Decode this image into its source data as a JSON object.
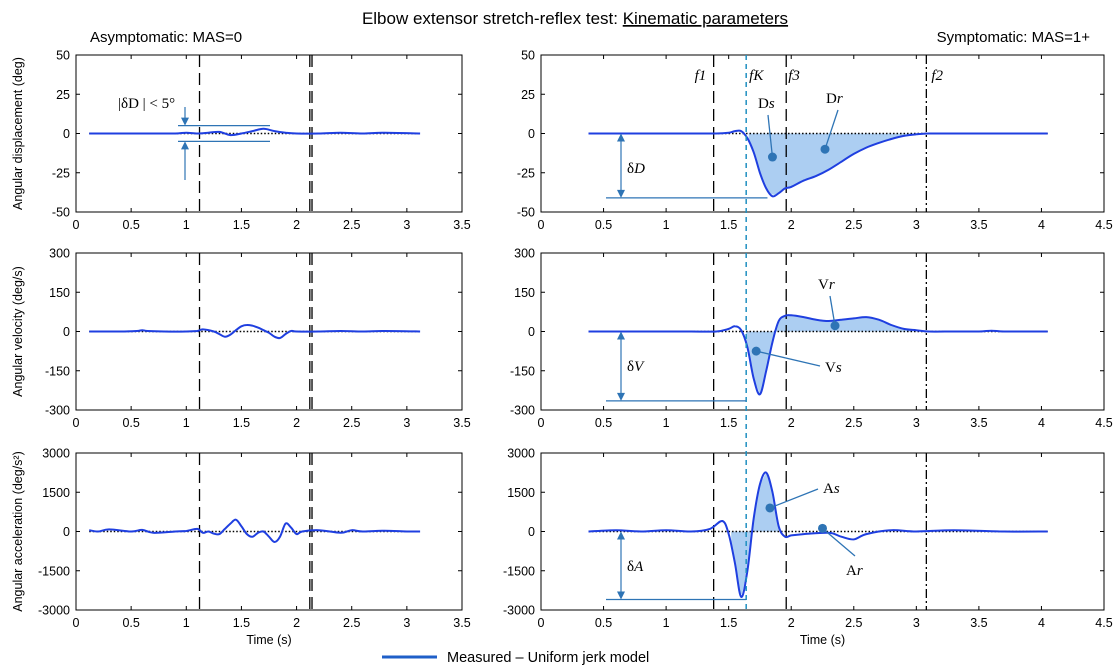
{
  "figure": {
    "title_plain": "Elbow extensor stretch-reflex test: ",
    "title_underlined": "Kinematic parameters",
    "left_header": "Asymptomatic: MAS=0",
    "right_header": "Symptomatic: MAS=1+",
    "legend_label": "Measured – Uniform jerk model",
    "colors": {
      "signal": "#1f3fe0",
      "fill": "#9ec5f0",
      "annotation": "#2e74b5",
      "fk_line": "#1f8fc0",
      "axes": "#000000"
    }
  },
  "chart_data": [
    {
      "id": "left-displacement",
      "type": "line",
      "ylabel": "Angular displacement (deg)",
      "xlabel": "",
      "xlim": [
        0,
        3.5
      ],
      "ylim": [
        -50,
        50
      ],
      "xticks": [
        0,
        0.5,
        1,
        1.5,
        2,
        2.5,
        3,
        3.5
      ],
      "xtick_labels": [
        "0",
        "0.5",
        "1",
        "1.5",
        "2",
        "2.5",
        "3",
        "3.5"
      ],
      "yticks": [
        -50,
        -25,
        0,
        25,
        50
      ],
      "ytick_labels": [
        "-50",
        "-25",
        "0",
        "25",
        "50"
      ],
      "vlines": [
        {
          "x": 1.12,
          "style": "dashed"
        },
        {
          "x": 2.12,
          "style": "dashed"
        },
        {
          "x": 2.14,
          "style": "dashed"
        }
      ],
      "series": [
        {
          "x": [
            0.12,
            0.3,
            0.5,
            0.7,
            0.9,
            1.0,
            1.1,
            1.2,
            1.3,
            1.4,
            1.5,
            1.6,
            1.7,
            1.8,
            1.9,
            2.0,
            2.2,
            2.4,
            2.6,
            2.8,
            3.12
          ],
          "y": [
            0,
            0,
            0,
            0,
            0,
            0.5,
            0,
            0.5,
            1,
            -1,
            0,
            1.5,
            3,
            1.5,
            0.5,
            0,
            0,
            0.5,
            0,
            0.5,
            0
          ]
        }
      ],
      "fill_regions": []
    },
    {
      "id": "left-velocity",
      "type": "line",
      "ylabel": "Angular velocity (deg/s)",
      "xlabel": "",
      "xlim": [
        0,
        3.5
      ],
      "ylim": [
        -300,
        300
      ],
      "xticks": [
        0,
        0.5,
        1,
        1.5,
        2,
        2.5,
        3,
        3.5
      ],
      "xtick_labels": [
        "0",
        "0.5",
        "1",
        "1.5",
        "2",
        "2.5",
        "3",
        "3.5"
      ],
      "yticks": [
        -300,
        -150,
        0,
        150,
        300
      ],
      "ytick_labels": [
        "-300",
        "-150",
        "0",
        "150",
        "300"
      ],
      "vlines": [
        {
          "x": 1.12,
          "style": "dashed"
        },
        {
          "x": 2.12,
          "style": "dashed"
        },
        {
          "x": 2.14,
          "style": "dashed"
        }
      ],
      "series": [
        {
          "x": [
            0.12,
            0.4,
            0.55,
            0.6,
            0.65,
            0.8,
            1.0,
            1.1,
            1.15,
            1.25,
            1.3,
            1.35,
            1.4,
            1.45,
            1.5,
            1.55,
            1.6,
            1.65,
            1.7,
            1.75,
            1.8,
            1.85,
            1.9,
            1.95,
            2.0,
            2.2,
            2.4,
            2.6,
            2.8,
            3.12
          ],
          "y": [
            0,
            0,
            2,
            5,
            2,
            0,
            0,
            2,
            8,
            0,
            -10,
            -20,
            -12,
            5,
            20,
            25,
            22,
            15,
            5,
            -5,
            -20,
            -25,
            -10,
            2,
            0,
            0,
            2,
            0,
            2,
            0
          ]
        }
      ],
      "fill_regions": []
    },
    {
      "id": "left-acceleration",
      "type": "line",
      "ylabel": "Angular acceleration (deg/s²)",
      "xlabel": "Time (s)",
      "xlim": [
        0,
        3.5
      ],
      "ylim": [
        -3000,
        3000
      ],
      "xticks": [
        0,
        0.5,
        1,
        1.5,
        2,
        2.5,
        3,
        3.5
      ],
      "xtick_labels": [
        "0",
        "0.5",
        "1",
        "1.5",
        "2",
        "2.5",
        "3",
        "3.5"
      ],
      "yticks": [
        -3000,
        -1500,
        0,
        1500,
        3000
      ],
      "ytick_labels": [
        "-3000",
        "-1500",
        "0",
        "1500",
        "3000"
      ],
      "vlines": [
        {
          "x": 1.12,
          "style": "dashed"
        },
        {
          "x": 2.12,
          "style": "dashed"
        },
        {
          "x": 2.14,
          "style": "dashed"
        }
      ],
      "series": [
        {
          "x": [
            0.12,
            0.2,
            0.3,
            0.5,
            0.6,
            0.7,
            0.9,
            1.0,
            1.1,
            1.15,
            1.2,
            1.25,
            1.3,
            1.35,
            1.4,
            1.45,
            1.5,
            1.55,
            1.6,
            1.65,
            1.7,
            1.75,
            1.8,
            1.85,
            1.9,
            1.95,
            2.0,
            2.05,
            2.2,
            2.4,
            2.5,
            2.6,
            2.8,
            3.0,
            3.12
          ],
          "y": [
            50,
            0,
            80,
            0,
            60,
            -50,
            0,
            20,
            100,
            -50,
            0,
            -80,
            -100,
            100,
            300,
            450,
            200,
            -100,
            -200,
            -50,
            0,
            -200,
            -400,
            -200,
            300,
            150,
            -100,
            0,
            50,
            -50,
            50,
            0,
            30,
            0,
            0
          ]
        }
      ],
      "fill_regions": []
    },
    {
      "id": "right-displacement",
      "type": "line",
      "ylabel": "",
      "xlabel": "",
      "xlim": [
        0,
        4.5
      ],
      "ylim": [
        -50,
        50
      ],
      "xticks": [
        0,
        0.5,
        1,
        1.5,
        2,
        2.5,
        3,
        3.5,
        4,
        4.5
      ],
      "xtick_labels": [
        "0",
        "0.5",
        "1",
        "1.5",
        "2",
        "2.5",
        "3",
        "3.5",
        "4",
        "4.5"
      ],
      "yticks": [
        -50,
        -25,
        0,
        25,
        50
      ],
      "ytick_labels": [
        "-50",
        "-25",
        "0",
        "25",
        "50"
      ],
      "vlines": [
        {
          "x": 1.38,
          "style": "dashed"
        },
        {
          "x": 1.96,
          "style": "dashed"
        },
        {
          "x": 3.08,
          "style": "dashdot"
        }
      ],
      "series": [
        {
          "x": [
            0.38,
            0.6,
            0.8,
            1.0,
            1.2,
            1.4,
            1.5,
            1.55,
            1.6,
            1.65,
            1.7,
            1.75,
            1.8,
            1.85,
            1.9,
            1.95,
            2.0,
            2.1,
            2.2,
            2.3,
            2.4,
            2.5,
            2.6,
            2.7,
            2.8,
            2.9,
            3.0,
            3.1,
            3.3,
            3.6,
            4.05
          ],
          "y": [
            0,
            0,
            0,
            0,
            0,
            0,
            0.5,
            1.5,
            1.5,
            -3,
            -12,
            -25,
            -35,
            -40,
            -38,
            -35,
            -34,
            -30,
            -27,
            -23,
            -18,
            -13,
            -9,
            -6,
            -3.5,
            -1.5,
            -0.5,
            0,
            0,
            0,
            0
          ]
        }
      ],
      "fill_regions": [
        {
          "x_start": 1.66,
          "x_end": 3.05
        }
      ]
    },
    {
      "id": "right-velocity",
      "type": "line",
      "ylabel": "",
      "xlabel": "",
      "xlim": [
        0,
        4.5
      ],
      "ylim": [
        -300,
        300
      ],
      "xticks": [
        0,
        0.5,
        1,
        1.5,
        2,
        2.5,
        3,
        3.5,
        4,
        4.5
      ],
      "xtick_labels": [
        "0",
        "0.5",
        "1",
        "1.5",
        "2",
        "2.5",
        "3",
        "3.5",
        "4",
        "4.5"
      ],
      "yticks": [
        -300,
        -150,
        0,
        150,
        300
      ],
      "ytick_labels": [
        "-300",
        "-150",
        "0",
        "150",
        "300"
      ],
      "vlines": [
        {
          "x": 1.38,
          "style": "dashed"
        },
        {
          "x": 1.96,
          "style": "dashed"
        },
        {
          "x": 3.08,
          "style": "dashdot"
        }
      ],
      "series": [
        {
          "x": [
            0.38,
            0.8,
            1.0,
            1.2,
            1.4,
            1.5,
            1.55,
            1.6,
            1.65,
            1.7,
            1.75,
            1.8,
            1.85,
            1.9,
            1.95,
            2.0,
            2.1,
            2.2,
            2.3,
            2.4,
            2.5,
            2.6,
            2.7,
            2.8,
            2.9,
            3.0,
            3.1,
            3.3,
            3.5,
            3.6,
            3.7,
            3.9,
            4.05
          ],
          "y": [
            0,
            0,
            0,
            0,
            0,
            10,
            20,
            5,
            -60,
            -180,
            -240,
            -150,
            -40,
            40,
            60,
            62,
            55,
            45,
            40,
            45,
            50,
            55,
            45,
            25,
            10,
            5,
            0,
            0,
            0,
            3,
            0,
            0,
            0
          ]
        }
      ],
      "fill_regions": [
        {
          "x_start": 1.64,
          "x_end": 1.88
        },
        {
          "x_start": 1.88,
          "x_end": 3.0
        }
      ]
    },
    {
      "id": "right-acceleration",
      "type": "line",
      "ylabel": "",
      "xlabel": "Time (s)",
      "xlim": [
        0,
        4.5
      ],
      "ylim": [
        -3000,
        3000
      ],
      "xticks": [
        0,
        0.5,
        1,
        1.5,
        2,
        2.5,
        3,
        3.5,
        4,
        4.5
      ],
      "xtick_labels": [
        "0",
        "0.5",
        "1",
        "1.5",
        "2",
        "2.5",
        "3",
        "3.5",
        "4",
        "4.5"
      ],
      "yticks": [
        -3000,
        -1500,
        0,
        1500,
        3000
      ],
      "ytick_labels": [
        "-3000",
        "-1500",
        "0",
        "1500",
        "3000"
      ],
      "vlines": [
        {
          "x": 1.38,
          "style": "dashed"
        },
        {
          "x": 1.96,
          "style": "dashed"
        },
        {
          "x": 3.08,
          "style": "dashdot"
        }
      ],
      "series": [
        {
          "x": [
            0.38,
            0.6,
            0.8,
            1.0,
            1.2,
            1.35,
            1.45,
            1.5,
            1.55,
            1.6,
            1.65,
            1.7,
            1.75,
            1.8,
            1.85,
            1.9,
            1.95,
            2.0,
            2.1,
            2.3,
            2.4,
            2.5,
            2.6,
            2.8,
            3.0,
            3.3,
            3.7,
            4.05
          ],
          "y": [
            0,
            50,
            0,
            50,
            0,
            100,
            400,
            -100,
            -1200,
            -2500,
            -1500,
            500,
            1800,
            2250,
            1500,
            200,
            -200,
            -150,
            -100,
            -50,
            -200,
            -300,
            -100,
            50,
            0,
            50,
            0,
            0
          ]
        }
      ],
      "fill_regions": [
        {
          "x_start": 1.52,
          "x_end": 1.9
        }
      ]
    }
  ],
  "annotations": {
    "left_delta_d": "|δD | < 5°",
    "right_f1": "f1",
    "right_fk": "fK",
    "right_f3": "f3",
    "right_f2": "f2",
    "ds": "Ds",
    "dr": "Dr",
    "delta_d": "δD",
    "vr": "Vr",
    "vs": "Vs",
    "delta_v": "δV",
    "as": "As",
    "ar": "Ar",
    "delta_a": "δA"
  }
}
